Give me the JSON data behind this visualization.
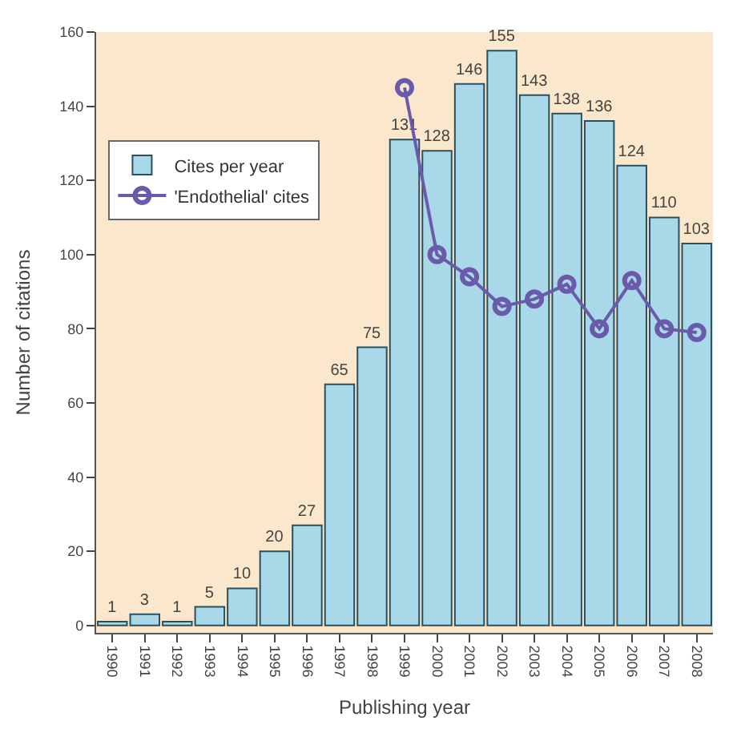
{
  "chart_data": {
    "type": "bar",
    "xlabel": "Publishing year",
    "ylabel": "Number of citations",
    "categories": [
      "1990",
      "1991",
      "1992",
      "1993",
      "1994",
      "1995",
      "1996",
      "1997",
      "1998",
      "1999",
      "2000",
      "2001",
      "2002",
      "2003",
      "2004",
      "2005",
      "2006",
      "2007",
      "2008"
    ],
    "series": [
      {
        "name": "Cites per year",
        "color": "#a9d9e9",
        "values": [
          1,
          3,
          1,
          5,
          10,
          20,
          27,
          65,
          75,
          131,
          128,
          146,
          155,
          143,
          138,
          136,
          124,
          110,
          103
        ],
        "value_labels": [
          "1",
          "3",
          "1",
          "5",
          "10",
          "20",
          "27",
          "65",
          "75",
          "131",
          "128",
          "146",
          "155",
          "143",
          "138",
          "136",
          "124",
          "110",
          "103"
        ]
      },
      {
        "name": "'Endothelial' cites",
        "type": "line",
        "color": "#6a5aaa",
        "marker": "circle",
        "values": [
          null,
          null,
          null,
          null,
          null,
          null,
          null,
          null,
          null,
          145,
          100,
          94,
          86,
          88,
          92,
          80,
          93,
          80,
          79
        ]
      }
    ],
    "ylim": [
      -2,
      160
    ],
    "yticks": [
      0,
      20,
      40,
      60,
      80,
      100,
      120,
      140,
      160
    ],
    "grid": false,
    "legend": "top left"
  }
}
